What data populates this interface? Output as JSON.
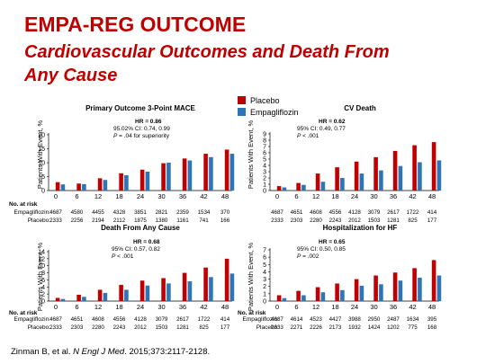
{
  "slide": {
    "title": "EMPA-REG OUTCOME",
    "subtitle_line1": "Cardiovascular Outcomes and Death From",
    "subtitle_line2": "Any Cause",
    "citation_pre": "Zinman B, et al. ",
    "citation_journal": "N Engl J Med",
    "citation_post": ". 2015;373:2117-2128."
  },
  "legend": {
    "placebo": "Placebo",
    "empagliflozin": "Empagliflozin",
    "placebo_color": "#c00000",
    "empagliflozin_color": "#2e75b6"
  },
  "chart_data": [
    {
      "type": "bar",
      "title": "Primary Outcome 3-Point MACE",
      "ylabel": "Patients With Event, %",
      "xlabel": "",
      "ylim": [
        0,
        20
      ],
      "yticks": [
        0,
        5,
        10,
        15,
        20
      ],
      "categories": [
        "0",
        "6",
        "12",
        "18",
        "24",
        "30",
        "36",
        "42",
        "48"
      ],
      "series": [
        {
          "name": "Placebo",
          "color": "#c00000",
          "values": [
            3.0,
            2.5,
            4.4,
            6.2,
            7.5,
            9.8,
            11.5,
            13.2,
            14.7
          ]
        },
        {
          "name": "Empagliflozin",
          "color": "#2e75b6",
          "values": [
            2.2,
            2.3,
            3.8,
            5.5,
            6.8,
            10.0,
            10.8,
            12.0,
            13.2
          ]
        }
      ],
      "stats": {
        "hr": "HR = 0.86",
        "ci": "95.02% CI: 0.74, 0.99",
        "p": "= .04 for superiority"
      },
      "at_risk": {
        "heading": "No. at risk",
        "empa_label": "Empagliflozin:",
        "placebo_label": "Placebo:",
        "empa": [
          "4687",
          "4580",
          "4455",
          "4328",
          "3851",
          "2821",
          "2359",
          "1534",
          "370"
        ],
        "placebo": [
          "2333",
          "2256",
          "2194",
          "2112",
          "1875",
          "1380",
          "1161",
          "741",
          "166"
        ]
      }
    },
    {
      "type": "bar",
      "title": "CV Death",
      "ylabel": "Patients With Event, %",
      "xlabel": "",
      "ylim": [
        0,
        9
      ],
      "yticks": [
        0,
        1,
        2,
        3,
        4,
        5,
        6,
        7,
        8,
        9
      ],
      "categories": [
        "0",
        "6",
        "12",
        "18",
        "24",
        "30",
        "36",
        "42",
        "48"
      ],
      "series": [
        {
          "name": "Placebo",
          "color": "#c00000",
          "values": [
            0.7,
            1.2,
            2.7,
            3.7,
            4.6,
            5.3,
            6.3,
            7.2,
            7.7
          ]
        },
        {
          "name": "Empagliflozin",
          "color": "#2e75b6",
          "values": [
            0.5,
            0.9,
            1.4,
            2.0,
            2.7,
            3.2,
            3.9,
            4.5,
            4.8
          ]
        }
      ],
      "stats": {
        "hr": "HR = 0.62",
        "ci": "95% CI: 0.49, 0.77",
        "p": "< .001"
      },
      "at_risk": {
        "heading": "",
        "empa_label": "",
        "placebo_label": "",
        "empa": [
          "4687",
          "4651",
          "4608",
          "4556",
          "4128",
          "3079",
          "2617",
          "1722",
          "414"
        ],
        "placebo": [
          "2333",
          "2303",
          "2280",
          "2243",
          "2012",
          "1503",
          "1281",
          "825",
          "177"
        ]
      }
    },
    {
      "type": "bar",
      "title": "Death From Any Cause",
      "ylabel": "Patients With Event, %",
      "xlabel": "",
      "ylim": [
        0,
        14
      ],
      "yticks": [
        0,
        2,
        4,
        6,
        8,
        10,
        12,
        14
      ],
      "categories": [
        "0",
        "6",
        "12",
        "18",
        "24",
        "30",
        "36",
        "42",
        "48"
      ],
      "series": [
        {
          "name": "Placebo",
          "color": "#c00000",
          "values": [
            0.9,
            1.8,
            3.2,
            4.6,
            5.8,
            6.5,
            8.0,
            9.5,
            12.0
          ]
        },
        {
          "name": "Empagliflozin",
          "color": "#2e75b6",
          "values": [
            0.6,
            1.2,
            2.3,
            3.2,
            4.4,
            5.0,
            5.6,
            6.8,
            7.8
          ]
        }
      ],
      "stats": {
        "hr": "HR = 0.68",
        "ci": "95% CI: 0.57, 0.82",
        "p": "< .001"
      },
      "at_risk": {
        "heading": "No. at risk",
        "empa_label": "Empagliflozin:",
        "placebo_label": "Placebo:",
        "empa": [
          "4687",
          "4651",
          "4608",
          "4556",
          "4128",
          "3079",
          "2617",
          "1722",
          "414"
        ],
        "placebo": [
          "2333",
          "2303",
          "2280",
          "2243",
          "2012",
          "1503",
          "1281",
          "825",
          "177"
        ]
      }
    },
    {
      "type": "bar",
      "title": "Hospitalization for HF",
      "ylabel": "Patients With Event, %",
      "xlabel": "",
      "ylim": [
        0,
        7
      ],
      "yticks": [
        0,
        1,
        2,
        3,
        4,
        5,
        6,
        7
      ],
      "categories": [
        "0",
        "6",
        "12",
        "18",
        "24",
        "30",
        "36",
        "42",
        "48"
      ],
      "series": [
        {
          "name": "Placebo",
          "color": "#c00000",
          "values": [
            0.8,
            1.4,
            1.9,
            2.4,
            3.0,
            3.5,
            3.9,
            4.5,
            5.6
          ]
        },
        {
          "name": "Empagliflozin",
          "color": "#2e75b6",
          "values": [
            0.4,
            0.8,
            1.2,
            1.5,
            2.1,
            2.3,
            2.8,
            3.2,
            3.5
          ]
        }
      ],
      "stats": {
        "hr": "HR = 0.65",
        "ci": "95% CI: 0.50, 0.85",
        "p": "= .002"
      },
      "at_risk": {
        "heading": "No. at risk",
        "empa_label": "Empagliflozin:",
        "placebo_label": "Placebo:",
        "empa": [
          "4687",
          "4614",
          "4523",
          "4427",
          "3988",
          "2950",
          "2487",
          "1634",
          "395"
        ],
        "placebo": [
          "2333",
          "2271",
          "2226",
          "2173",
          "1932",
          "1424",
          "1202",
          "775",
          "168"
        ]
      }
    }
  ]
}
